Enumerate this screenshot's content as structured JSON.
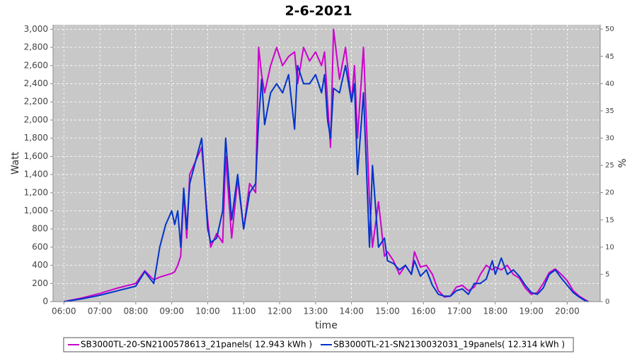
{
  "chart_data": {
    "type": "line",
    "title": "2-6-2021",
    "x_label": "time",
    "y_label": "Watt",
    "y2_label": "%",
    "grid": true,
    "legend": "bottom",
    "xlim": [
      "05:42",
      "20:55"
    ],
    "xticks": [
      "06:00",
      "07:00",
      "08:00",
      "09:00",
      "10:00",
      "11:00",
      "12:00",
      "13:00",
      "14:00",
      "15:00",
      "16:00",
      "17:00",
      "18:00",
      "19:00",
      "20:00"
    ],
    "ylim": [
      0,
      3050
    ],
    "yticks": [
      0,
      200,
      400,
      600,
      800,
      {
        "value": 1000,
        "label": "1,000"
      },
      {
        "value": 1200,
        "label": "1,200"
      },
      {
        "value": 1400,
        "label": "1,400"
      },
      {
        "value": 1600,
        "label": "1,600"
      },
      {
        "value": 1800,
        "label": "1,800"
      },
      {
        "value": 2000,
        "label": "2,000"
      },
      {
        "value": 2200,
        "label": "2,200"
      },
      {
        "value": 2400,
        "label": "2,400"
      },
      {
        "value": 2600,
        "label": "2,600"
      },
      {
        "value": 2800,
        "label": "2,800"
      },
      {
        "value": 3000,
        "label": "3,000"
      }
    ],
    "y2lim": [
      0,
      50.8
    ],
    "y2ticks": [
      0,
      5,
      10,
      15,
      20,
      25,
      30,
      35,
      40,
      45,
      50
    ],
    "x": [
      "06:00",
      "06:30",
      "07:00",
      "07:30",
      "08:00",
      "08:15",
      "08:30",
      "08:40",
      "08:50",
      "09:00",
      "09:05",
      "09:10",
      "09:15",
      "09:20",
      "09:25",
      "09:30",
      "09:40",
      "09:50",
      "10:00",
      "10:05",
      "10:15",
      "10:25",
      "10:30",
      "10:40",
      "10:50",
      "11:00",
      "11:10",
      "11:20",
      "11:25",
      "11:30",
      "11:35",
      "11:45",
      "11:55",
      "12:05",
      "12:15",
      "12:25",
      "12:30",
      "12:40",
      "12:50",
      "13:00",
      "13:10",
      "13:15",
      "13:20",
      "13:25",
      "13:30",
      "13:40",
      "13:50",
      "14:00",
      "14:05",
      "14:10",
      "14:20",
      "14:30",
      "14:35",
      "14:45",
      "14:55",
      "15:00",
      "15:10",
      "15:20",
      "15:30",
      "15:40",
      "15:45",
      "15:55",
      "16:05",
      "16:15",
      "16:25",
      "16:35",
      "16:45",
      "16:55",
      "17:05",
      "17:15",
      "17:25",
      "17:35",
      "17:45",
      "17:55",
      "18:00",
      "18:10",
      "18:20",
      "18:30",
      "18:40",
      "18:50",
      "19:00",
      "19:10",
      "19:20",
      "19:30",
      "19:40",
      "19:50",
      "20:00",
      "20:10",
      "20:20",
      "20:30",
      "20:35"
    ],
    "series": [
      {
        "name": "SB3000TL-20-SN2100578613_21panels( 12.943 kWh )",
        "color": "#cc00cc",
        "values": [
          0,
          40,
          90,
          150,
          200,
          340,
          240,
          270,
          290,
          310,
          330,
          400,
          500,
          1200,
          700,
          1400,
          1550,
          1700,
          900,
          600,
          750,
          650,
          1600,
          700,
          1350,
          800,
          1300,
          1200,
          2800,
          2500,
          2300,
          2600,
          2800,
          2600,
          2700,
          2750,
          2400,
          2800,
          2650,
          2750,
          2600,
          2750,
          2200,
          1700,
          3000,
          2450,
          2800,
          2200,
          2600,
          1800,
          2800,
          1100,
          600,
          1100,
          500,
          550,
          450,
          300,
          400,
          300,
          550,
          380,
          400,
          300,
          120,
          50,
          60,
          160,
          180,
          120,
          160,
          300,
          400,
          350,
          380,
          350,
          400,
          300,
          260,
          150,
          80,
          100,
          200,
          320,
          360,
          300,
          230,
          120,
          60,
          20,
          0
        ]
      },
      {
        "name": "SB3000TL-21-SN2130032031_19panels( 12.314 kWh )",
        "color": "#0033cc",
        "values": [
          0,
          30,
          70,
          120,
          170,
          330,
          200,
          600,
          850,
          1000,
          850,
          1000,
          600,
          1250,
          800,
          1300,
          1550,
          1800,
          800,
          650,
          700,
          1000,
          1800,
          900,
          1400,
          800,
          1200,
          1300,
          2000,
          2450,
          1950,
          2300,
          2400,
          2300,
          2500,
          1900,
          2600,
          2400,
          2400,
          2500,
          2300,
          2500,
          2000,
          1800,
          2350,
          2300,
          2600,
          2200,
          2400,
          1400,
          2300,
          600,
          1500,
          600,
          700,
          450,
          420,
          350,
          400,
          300,
          450,
          280,
          350,
          180,
          80,
          60,
          60,
          120,
          140,
          80,
          200,
          200,
          250,
          450,
          300,
          480,
          300,
          350,
          280,
          180,
          100,
          80,
          150,
          300,
          350,
          260,
          180,
          100,
          50,
          10,
          0
        ]
      }
    ]
  }
}
